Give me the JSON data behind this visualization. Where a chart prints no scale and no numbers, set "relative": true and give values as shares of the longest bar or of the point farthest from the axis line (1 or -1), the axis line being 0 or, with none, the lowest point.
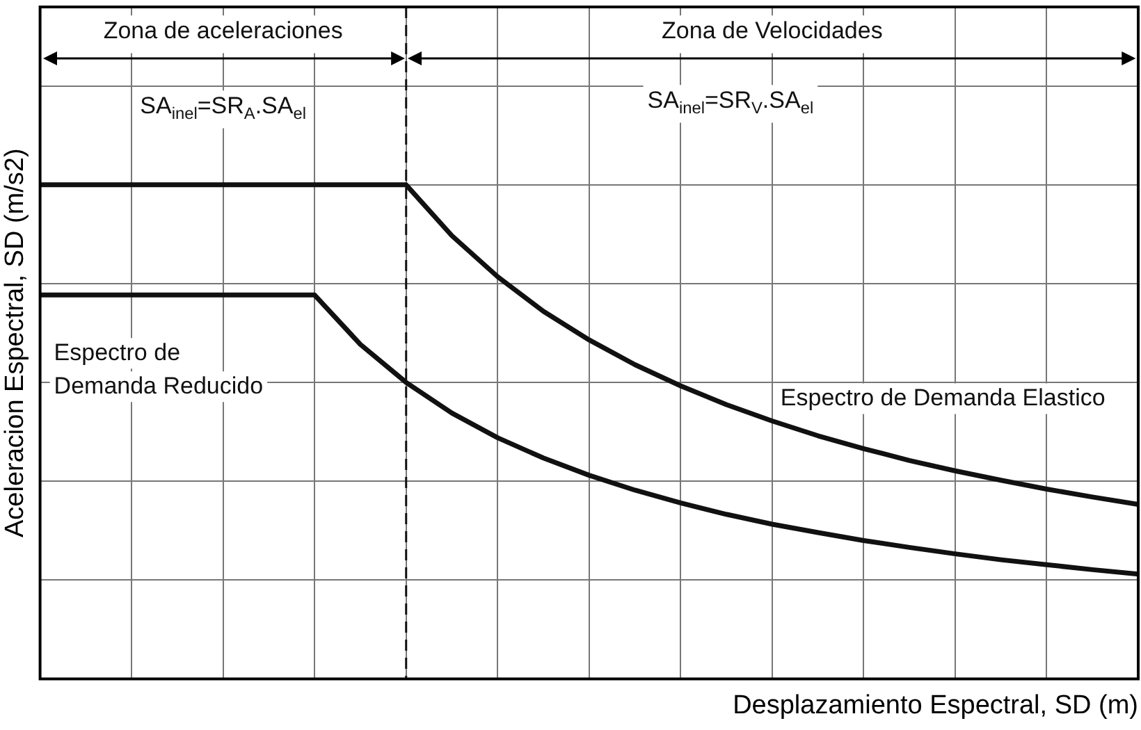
{
  "chart_data": {
    "type": "line",
    "relative": true,
    "xlabel": "Desplazamiento Espectral, SD (m)",
    "ylabel": "Aceleracion Espectral, SD (m/s2)",
    "categories": [
      null,
      null,
      null,
      null,
      null,
      null,
      null,
      null,
      null,
      null,
      null,
      null,
      null,
      null,
      null,
      null,
      null,
      null,
      null,
      null,
      null,
      null,
      null,
      null,
      null
    ],
    "series": [
      {
        "name": "Espectro de Demanda Elastico",
        "color": "#111111",
        "values": [
          1,
          1,
          1,
          1,
          1,
          1,
          1,
          1,
          1,
          0.897,
          0.814,
          0.744,
          0.686,
          0.636,
          0.593,
          0.555,
          0.522,
          0.492,
          0.466,
          0.442,
          0.421,
          0.402,
          0.384,
          0.368,
          0.353
        ]
      },
      {
        "name": "Espectro de Demanda Reducido",
        "color": "#111111",
        "values": [
          0.777,
          0.777,
          0.777,
          0.777,
          0.777,
          0.777,
          0.777,
          0.677,
          0.6,
          0.538,
          0.488,
          0.447,
          0.412,
          0.382,
          0.356,
          0.333,
          0.313,
          0.296,
          0.28,
          0.266,
          0.253,
          0.241,
          0.231,
          0.221,
          0.212
        ]
      }
    ],
    "annotations": [
      "Zona de aceleraciones",
      "Zona de Velocidades",
      "SA$_{inel}$=SR$_{A}$.SA$_{el}$",
      "SA$_{inel}$=SR$_{V}$.SA$_{el}$"
    ],
    "grid": true,
    "marker": "none",
    "line_style": "solid",
    "legend": false,
    "tick_labels": false
  }
}
